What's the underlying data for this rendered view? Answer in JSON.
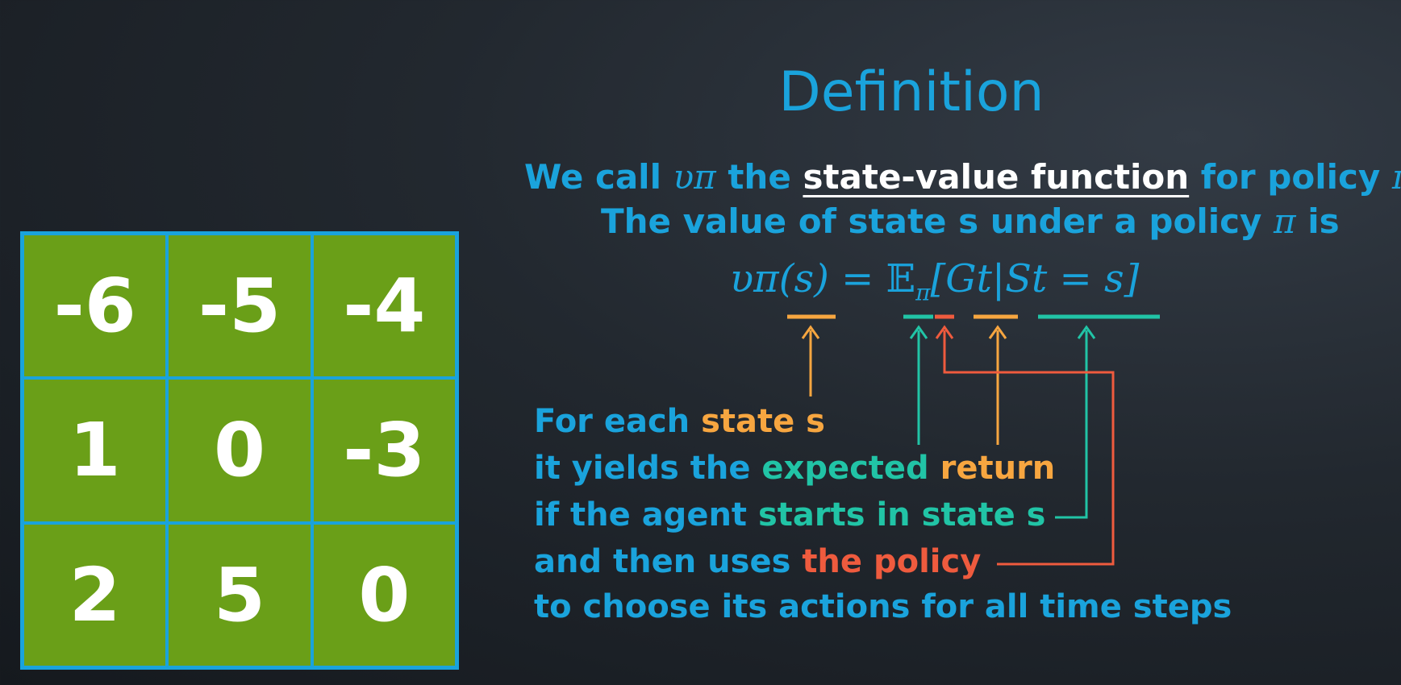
{
  "title": "Definition",
  "grid": {
    "cells": [
      "-6",
      "-5",
      "-4",
      "1",
      "0",
      "-3",
      "2",
      "5",
      "0"
    ]
  },
  "definition": {
    "line1_prefix": "We call ",
    "line1_symbol": "υπ",
    "line1_mid": " the ",
    "line1_term": "state-value function",
    "line1_suffix": " for policy ",
    "line1_pi": "π",
    "line2_text": "The value of state s under a policy ",
    "line2_pi": "π",
    "line2_suffix": " is"
  },
  "equation": {
    "lhs": "υπ(s) = ",
    "expect": "𝔼",
    "expect_sub": "π",
    "rhs": "[Gt|St = s]"
  },
  "explanation": {
    "line1_a": "For each ",
    "line1_b": "state s",
    "line2_a": "it yields the ",
    "line2_b": "expected",
    "line2_c": " return",
    "line3_a": "if the agent ",
    "line3_b": "starts in state s",
    "line4_a": "and then uses ",
    "line4_b": "the policy",
    "line5": "to choose its actions for all time steps"
  },
  "colors": {
    "blue": "#1aa3dc",
    "orange": "#f7a640",
    "teal": "#21c4a6",
    "red": "#ef5b3e",
    "grid_green": "#6a9f18"
  }
}
